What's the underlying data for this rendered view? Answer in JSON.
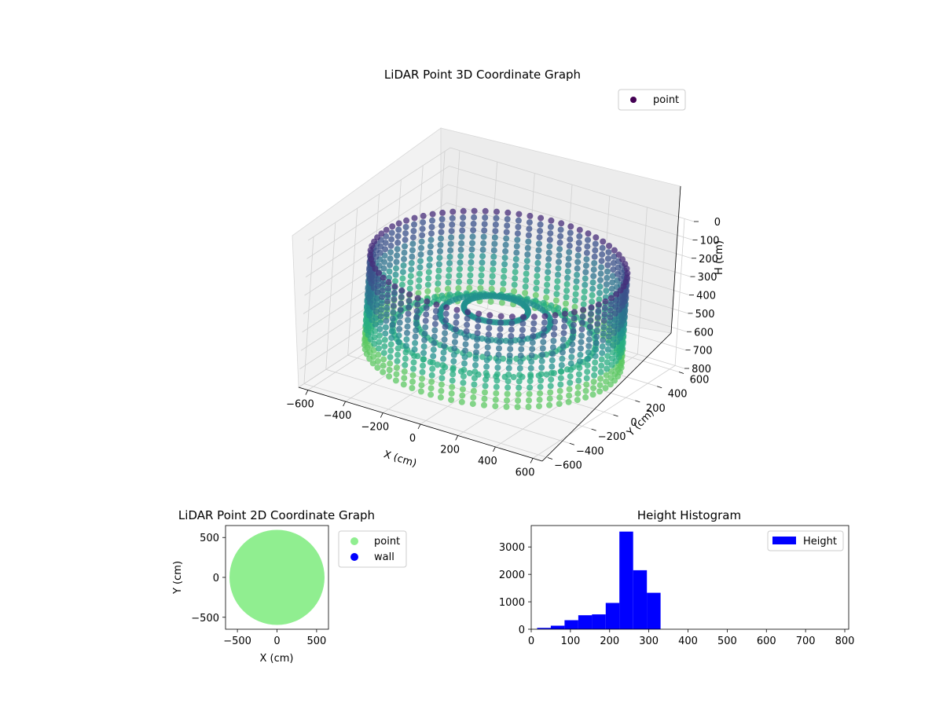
{
  "chart_data": [
    {
      "type": "scatter",
      "projection": "3d",
      "title": "LiDAR Point 3D Coordinate Graph",
      "xlabel": "X (cm)",
      "ylabel": "Y (cm)",
      "zlabel": "H (cm)",
      "xlim": [
        -650,
        650
      ],
      "ylim": [
        -650,
        650
      ],
      "zlim": [
        0,
        800
      ],
      "z_inverted": true,
      "x_ticks": [
        "−600",
        "−400",
        "−200",
        "0",
        "200",
        "400",
        "600"
      ],
      "y_ticks": [
        "−600",
        "−400",
        "−200",
        "0",
        "200",
        "400",
        "600"
      ],
      "z_ticks": [
        "0",
        "100",
        "200",
        "300",
        "400",
        "500",
        "600",
        "700",
        "800"
      ],
      "colormap": "viridis",
      "grid": true,
      "legend": {
        "position": "top-right",
        "entries": [
          {
            "label": "point",
            "color": "#440154"
          }
        ]
      },
      "cloud": {
        "shape": "ring",
        "radius": 600,
        "height_range": [
          180,
          700
        ]
      }
    },
    {
      "type": "scatter",
      "title": "LiDAR Point 2D Coordinate Graph",
      "xlabel": "X (cm)",
      "ylabel": "Y (cm)",
      "xlim": [
        -650,
        650
      ],
      "ylim": [
        -650,
        650
      ],
      "x_ticks": [
        "−500",
        "0",
        "500"
      ],
      "y_ticks": [
        "−500",
        "0",
        "500"
      ],
      "series": [
        {
          "name": "point",
          "color": "#90ee90",
          "region": "disc",
          "radius": 600
        },
        {
          "name": "wall",
          "color": "#0000ff",
          "points": []
        }
      ],
      "legend": {
        "position": "outside-right"
      }
    },
    {
      "type": "bar",
      "title": "Height Histogram",
      "xlim": [
        0,
        810
      ],
      "ylim": [
        0,
        3780
      ],
      "x_ticks": [
        "0",
        "100",
        "200",
        "300",
        "400",
        "500",
        "600",
        "700",
        "800"
      ],
      "y_ticks": [
        "0",
        "1000",
        "2000",
        "3000"
      ],
      "bins": [
        {
          "x0": 15,
          "x1": 50,
          "value": 50
        },
        {
          "x0": 50,
          "x1": 85,
          "value": 130
        },
        {
          "x0": 85,
          "x1": 120,
          "value": 330
        },
        {
          "x0": 120,
          "x1": 155,
          "value": 510
        },
        {
          "x0": 155,
          "x1": 190,
          "value": 540
        },
        {
          "x0": 190,
          "x1": 225,
          "value": 960
        },
        {
          "x0": 225,
          "x1": 260,
          "value": 3560
        },
        {
          "x0": 260,
          "x1": 295,
          "value": 2150
        },
        {
          "x0": 295,
          "x1": 330,
          "value": 1330
        }
      ],
      "color": "#0000ff",
      "series": [
        {
          "name": "Height"
        }
      ],
      "legend": {
        "position": "top-right"
      }
    }
  ]
}
